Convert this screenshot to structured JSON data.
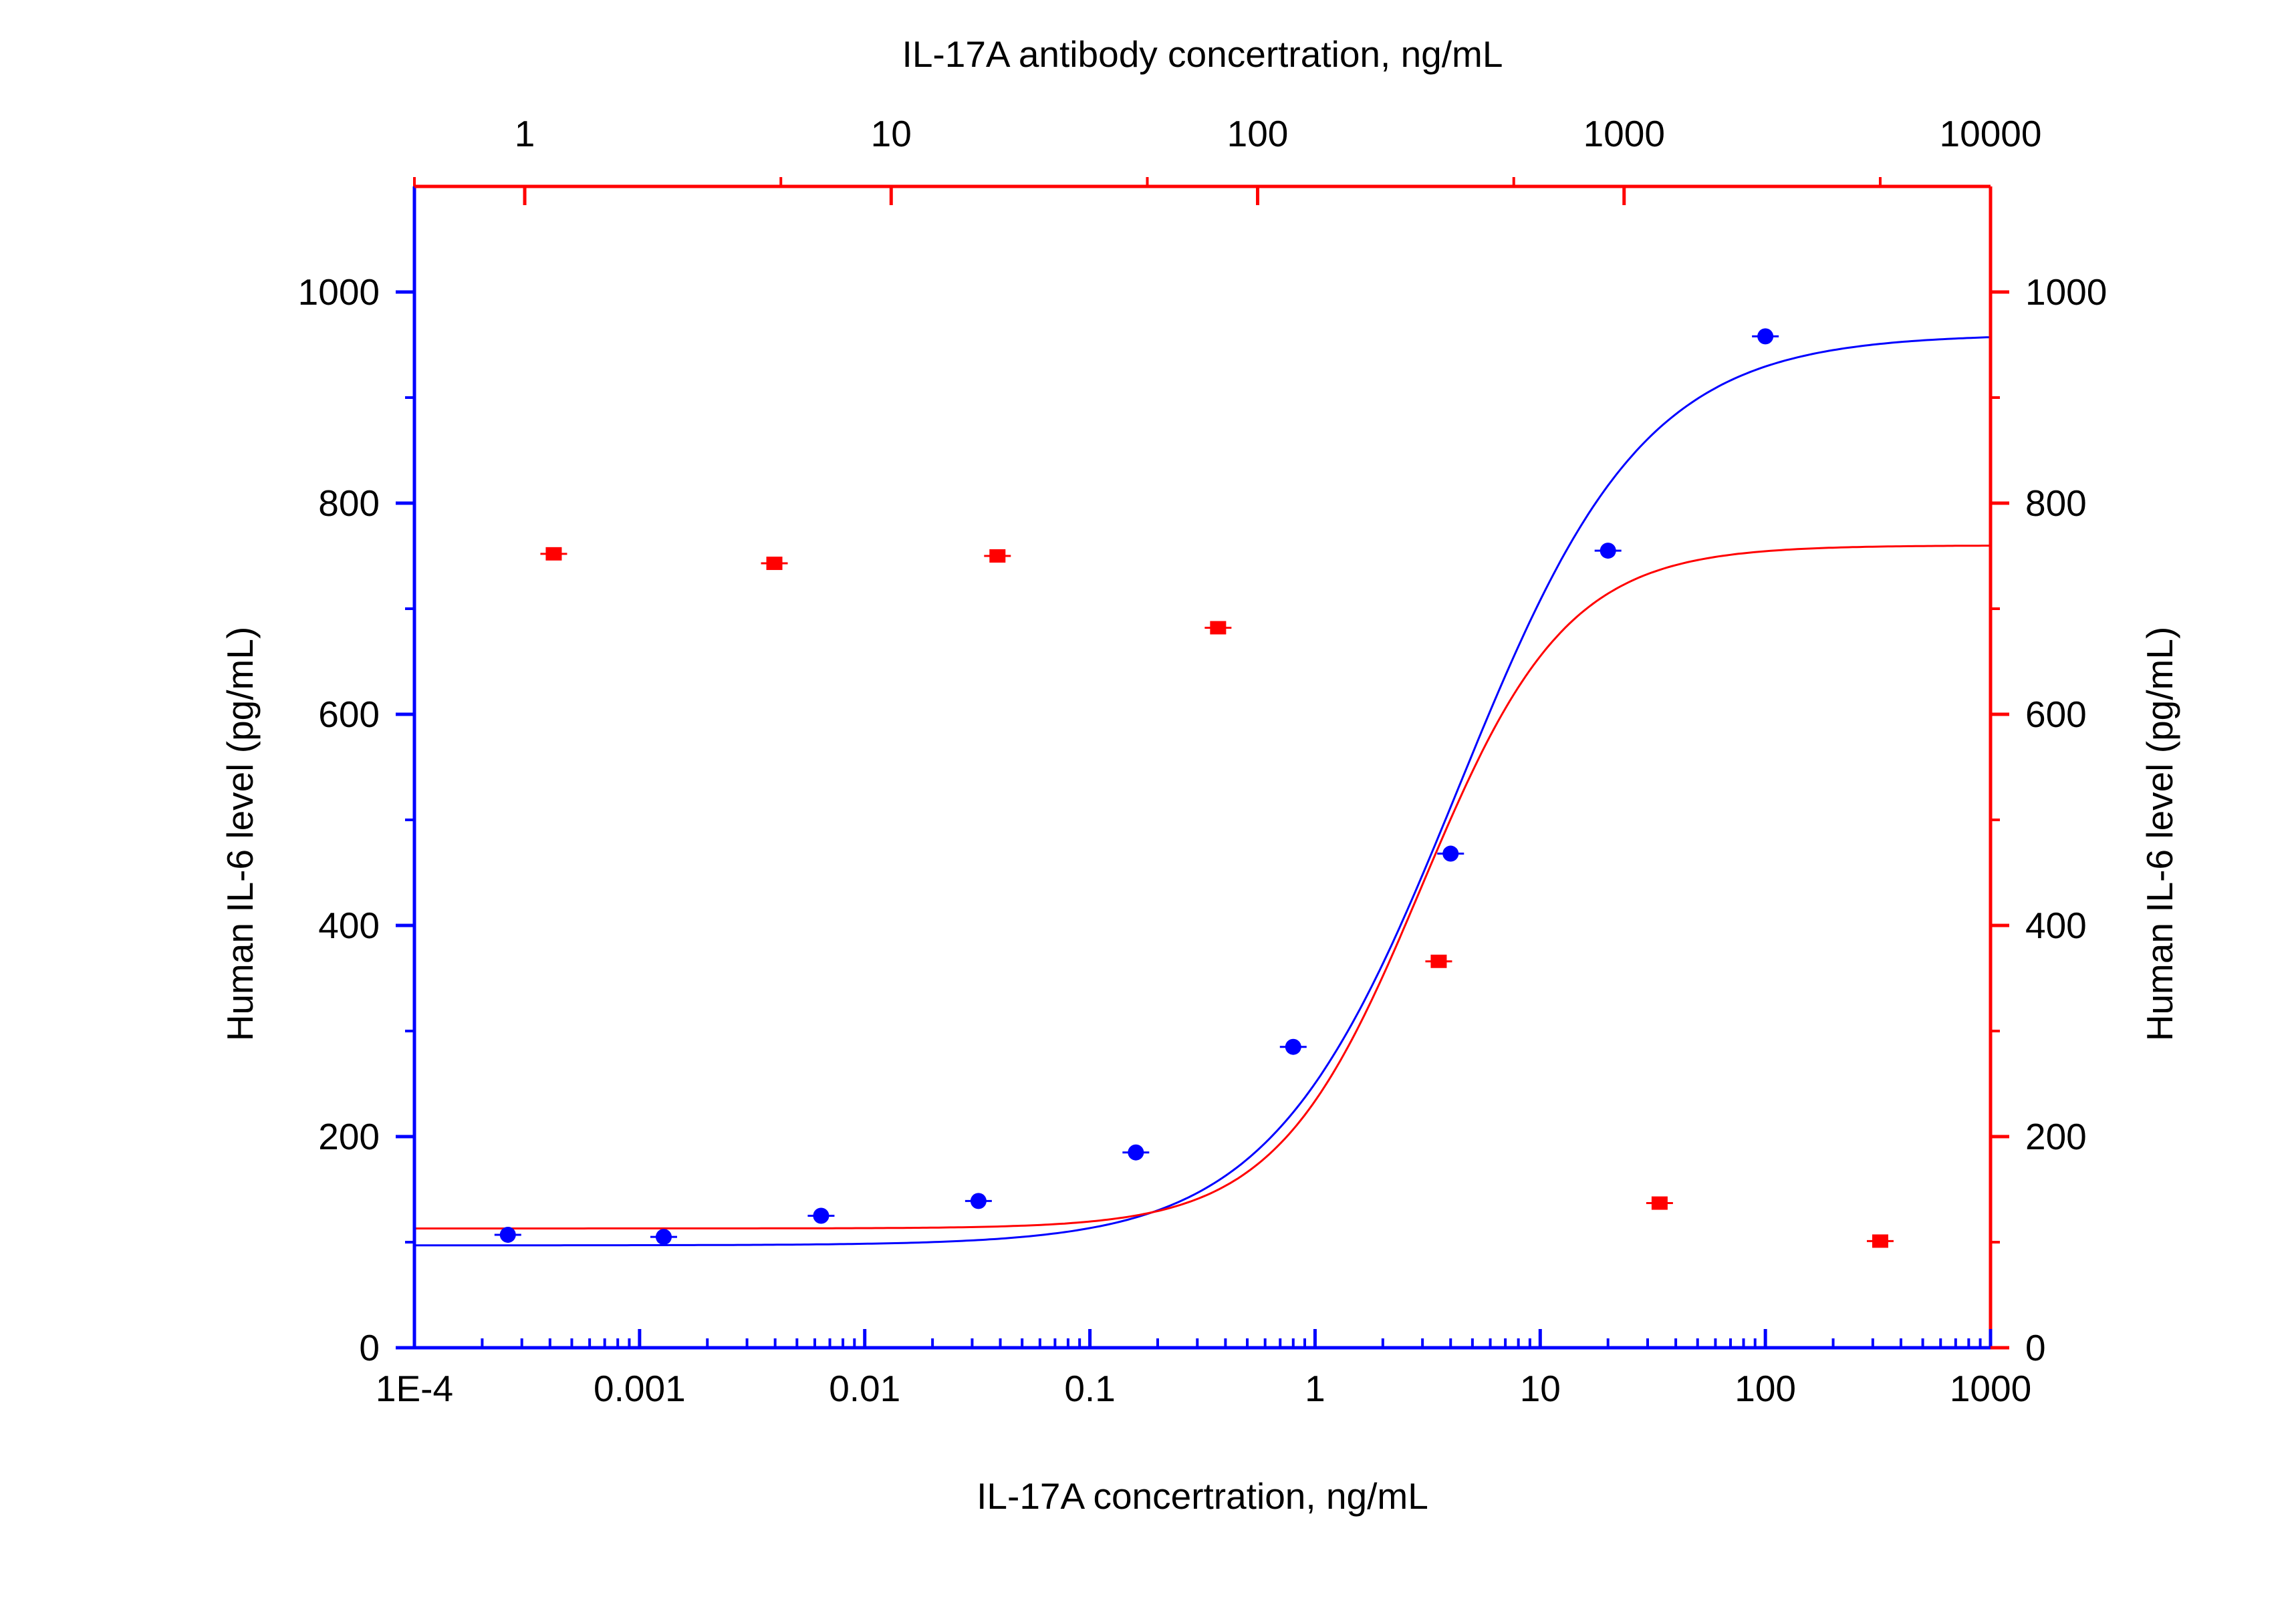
{
  "chart_data": {
    "type": "scatter",
    "grid": false,
    "bottom_axis": {
      "label": "IL-17A  concertration, ng/mL",
      "scale": "log",
      "range": [
        0.0001,
        1000
      ],
      "ticks": [
        0.0001,
        0.001,
        0.01,
        0.1,
        1,
        10,
        100,
        1000
      ],
      "tick_labels": [
        "1E-4",
        "0.001",
        "0.01",
        "0.1",
        "1",
        "10",
        "100",
        "1000"
      ],
      "color": "#0000FF"
    },
    "top_axis": {
      "label": "IL-17A antibody concertration, ng/mL",
      "scale": "log",
      "range": [
        0.5,
        10000
      ],
      "ticks": [
        1,
        10,
        100,
        1000,
        10000
      ],
      "tick_labels": [
        "1",
        "10",
        "100",
        "1000",
        "10000"
      ],
      "color": "#FF0000"
    },
    "left_axis": {
      "label": "Human IL-6 level (pg/mL)",
      "range": [
        0,
        1100
      ],
      "ticks": [
        0,
        200,
        400,
        600,
        800,
        1000
      ],
      "tick_labels": [
        "0",
        "200",
        "400",
        "600",
        "800",
        "1000"
      ],
      "color": "#0000FF"
    },
    "right_axis": {
      "label": "Human IL-6 level (pg/mL)",
      "range": [
        0,
        1100
      ],
      "ticks": [
        0,
        200,
        400,
        600,
        800,
        1000
      ],
      "tick_labels": [
        "0",
        "200",
        "400",
        "600",
        "800",
        "1000"
      ],
      "color": "#FF0000"
    },
    "series": [
      {
        "color": "#0000FF",
        "marker": "circle",
        "x_axis": "bottom",
        "y_axis": "left",
        "x": [
          0.00026,
          0.00128,
          0.0064,
          0.032,
          0.16,
          0.8,
          4,
          20,
          100
        ],
        "y": [
          107,
          105,
          125,
          139,
          185,
          285,
          468,
          755,
          958
        ],
        "fit": {
          "bottom": 97,
          "top": 960,
          "ec50": 4.3,
          "hill": 1.05
        }
      },
      {
        "color": "#FF0000",
        "marker": "square",
        "x_axis": "top",
        "y_axis": "right",
        "x": [
          1.2,
          4.8,
          19.5,
          78,
          312,
          1250,
          5000
        ],
        "y": [
          752,
          743,
          750,
          682,
          366,
          137,
          101
        ],
        "fit": {
          "bottom": 113,
          "top": 760,
          "ec50": 280,
          "hill": 2.2
        }
      }
    ]
  }
}
